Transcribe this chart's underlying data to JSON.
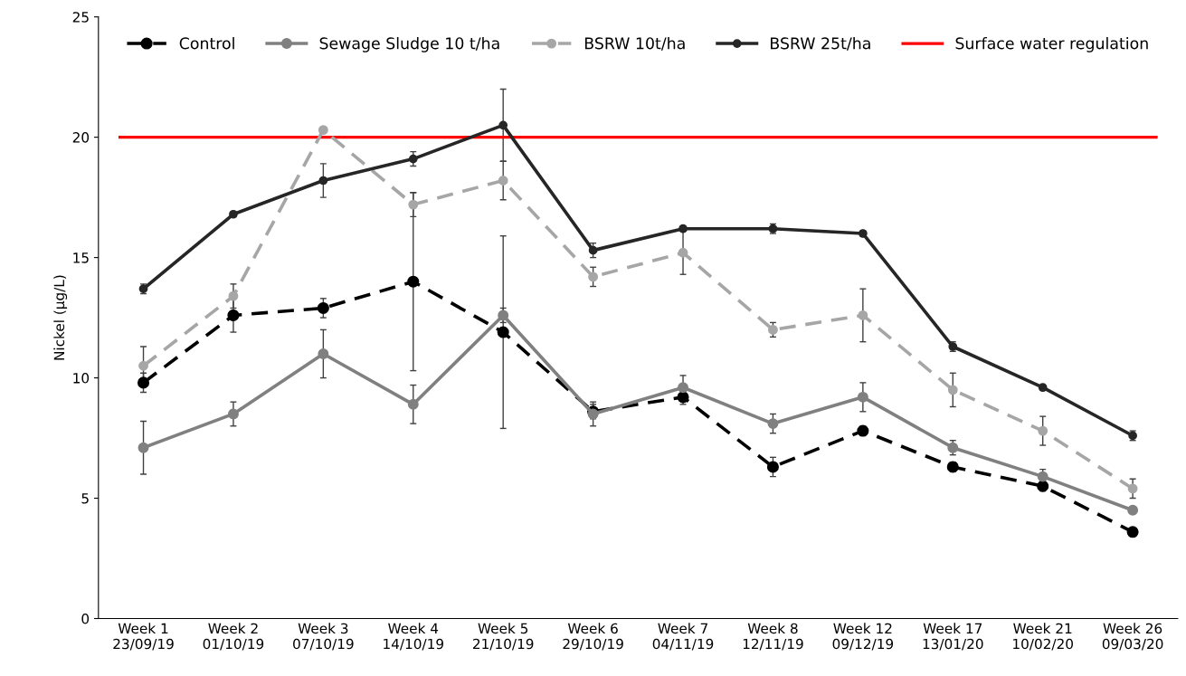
{
  "chart_data": {
    "type": "line",
    "ylabel": "Nickel (µg/L)",
    "categories": [
      "Week 1\n23/09/19",
      "Week 2\n01/10/19",
      "Week 3\n07/10/19",
      "Week 4\n14/10/19",
      "Week 5\n21/10/19",
      "Week 6\n29/10/19",
      "Week 7\n04/11/19",
      "Week 8\n12/11/19",
      "Week 12\n09/12/19",
      "Week 17\n13/01/20",
      "Week 21\n10/02/20",
      "Week 26\n09/03/20"
    ],
    "ylim": [
      0,
      25
    ],
    "yticks": [
      0,
      5,
      10,
      15,
      20,
      25
    ],
    "grid": false,
    "legend": "top",
    "marker": "circle",
    "series": [
      {
        "name": "Control",
        "color": "#000000",
        "line_style": "dashed",
        "values": [
          9.8,
          12.6,
          12.9,
          14.0,
          11.9,
          8.6,
          9.2,
          6.3,
          7.8,
          6.3,
          5.5,
          3.6
        ],
        "errors": [
          0.4,
          0.7,
          0.4,
          3.7,
          4.0,
          0.3,
          0.3,
          0.4,
          0.2,
          0.2,
          0.2,
          0.1
        ]
      },
      {
        "name": "Sewage Sludge 10 t/ha",
        "color": "#808080",
        "line_style": "solid",
        "values": [
          7.1,
          8.5,
          11.0,
          8.9,
          12.6,
          8.5,
          9.6,
          8.1,
          9.2,
          7.1,
          5.9,
          4.5
        ],
        "errors": [
          1.1,
          0.5,
          1.0,
          0.8,
          0.3,
          0.5,
          0.5,
          0.4,
          0.6,
          0.3,
          0.3,
          0.1
        ]
      },
      {
        "name": "BSRW 10t/ha",
        "color": "#a6a6a6",
        "line_style": "dashed",
        "values": [
          10.5,
          13.4,
          20.3,
          17.2,
          18.2,
          14.2,
          15.2,
          12.0,
          12.6,
          9.5,
          7.8,
          5.4
        ],
        "errors": [
          0.8,
          0.5,
          0.1,
          0.5,
          0.8,
          0.4,
          0.9,
          0.3,
          1.1,
          0.7,
          0.6,
          0.4
        ]
      },
      {
        "name": "BSRW 25t/ha",
        "color": "#262626",
        "line_style": "solid",
        "values": [
          13.7,
          16.8,
          18.2,
          19.1,
          20.5,
          15.3,
          16.2,
          16.2,
          16.0,
          11.3,
          9.6,
          7.6
        ],
        "errors": [
          0.2,
          0.1,
          0.7,
          0.3,
          1.5,
          0.3,
          0.1,
          0.2,
          0.1,
          0.2,
          0.1,
          0.2
        ]
      }
    ],
    "ref_lines": [
      {
        "axis": "y",
        "value": 20,
        "label": "Surface water regulation",
        "color": "#ff0000",
        "line_style": "solid"
      }
    ]
  }
}
